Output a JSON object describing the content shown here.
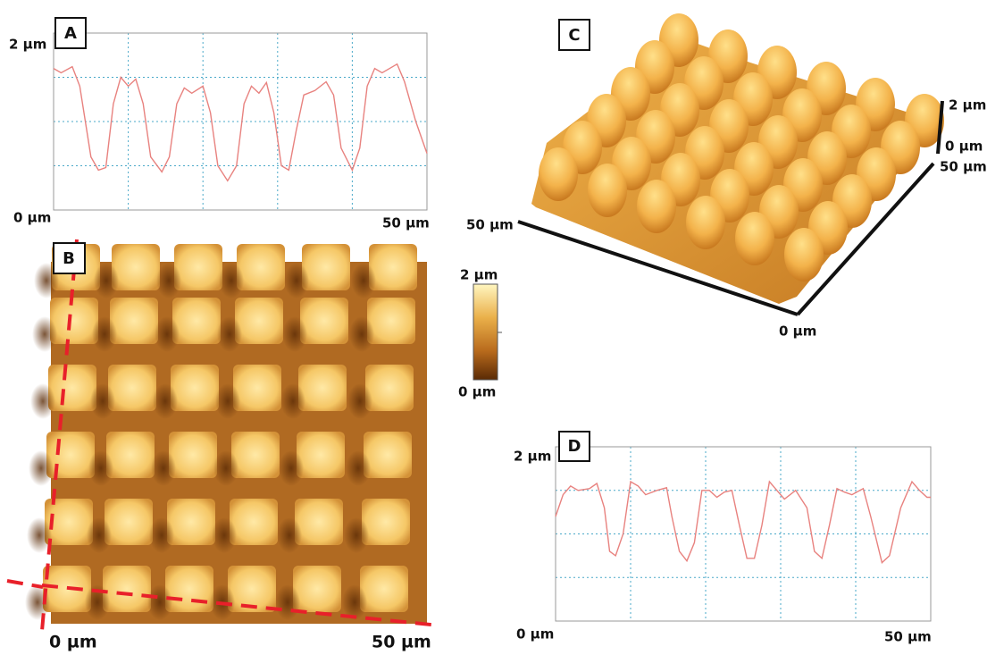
{
  "panels": {
    "a": {
      "label": "A",
      "y_top_label": "2 µm",
      "x_left_label": "0 µm",
      "x_right_label": "50 µm",
      "xlim": [
        0,
        50
      ],
      "ylim": [
        0,
        2
      ],
      "xgrid": [
        10,
        20,
        30,
        40
      ],
      "ygrid": [
        0.5,
        1,
        1.5
      ],
      "profile": {
        "x": [
          0,
          1,
          2.5,
          3.5,
          5,
          6,
          7,
          8,
          9,
          10,
          11,
          12,
          13,
          14.5,
          15.5,
          16.5,
          17.5,
          18.5,
          20,
          21,
          22,
          23.3,
          24.5,
          25.5,
          26.5,
          27.5,
          28.5,
          29.5,
          30.5,
          31.5,
          32.5,
          33.5,
          35,
          36.5,
          37.5,
          38.5,
          40,
          41,
          42,
          43,
          44,
          46,
          47,
          48.5,
          50
        ],
        "y": [
          1.6,
          1.55,
          1.62,
          1.4,
          0.6,
          0.45,
          0.48,
          1.2,
          1.5,
          1.4,
          1.48,
          1.2,
          0.6,
          0.43,
          0.6,
          1.2,
          1.38,
          1.32,
          1.4,
          1.1,
          0.5,
          0.33,
          0.5,
          1.2,
          1.4,
          1.32,
          1.44,
          1.1,
          0.5,
          0.45,
          0.9,
          1.3,
          1.35,
          1.45,
          1.3,
          0.7,
          0.45,
          0.7,
          1.4,
          1.6,
          1.55,
          1.65,
          1.45,
          1.0,
          0.64
        ]
      }
    },
    "b": {
      "label": "B",
      "x_left_label": "0 µm",
      "x_right_label": "50 µm"
    },
    "colorbar": {
      "top_label": "2 µm",
      "bottom_label": "0 µm"
    },
    "c": {
      "label": "C",
      "z_top_label": "2 µm",
      "z_bottom_label": "0 µm",
      "right_axis_label": "50 µm",
      "left_axis_label": "50 µm",
      "origin_label": "0 µm"
    },
    "d": {
      "label": "D",
      "y_top_label": "2 µm",
      "x_left_label": "0 µm",
      "x_right_label": "50 µm",
      "xlim": [
        0,
        50
      ],
      "ylim": [
        0,
        2
      ],
      "xgrid": [
        10,
        20,
        30,
        40
      ],
      "ygrid": [
        0.5,
        1,
        1.5
      ],
      "profile": {
        "x": [
          0,
          1,
          2,
          3,
          4.5,
          5.5,
          6.5,
          7.2,
          8,
          9,
          10,
          11,
          12,
          13.5,
          14.8,
          15.5,
          16.5,
          17.5,
          18.5,
          19.5,
          20.5,
          21.5,
          22.5,
          23.5,
          24.5,
          25.5,
          26.5,
          27.5,
          28.5,
          29.5,
          30.5,
          32,
          33.5,
          34.5,
          35.5,
          36.5,
          37.5,
          38.5,
          39.5,
          41,
          42,
          43.5,
          44.5,
          46,
          47.5,
          48.5,
          49.5,
          50
        ],
        "y": [
          1.2,
          1.45,
          1.55,
          1.5,
          1.52,
          1.58,
          1.3,
          0.8,
          0.75,
          1.0,
          1.6,
          1.55,
          1.45,
          1.5,
          1.53,
          1.2,
          0.8,
          0.69,
          0.9,
          1.5,
          1.5,
          1.42,
          1.48,
          1.5,
          1.1,
          0.72,
          0.72,
          1.1,
          1.6,
          1.5,
          1.4,
          1.5,
          1.3,
          0.8,
          0.72,
          1.1,
          1.52,
          1.48,
          1.45,
          1.52,
          1.2,
          0.67,
          0.75,
          1.3,
          1.6,
          1.5,
          1.42,
          1.42
        ]
      }
    }
  }
}
